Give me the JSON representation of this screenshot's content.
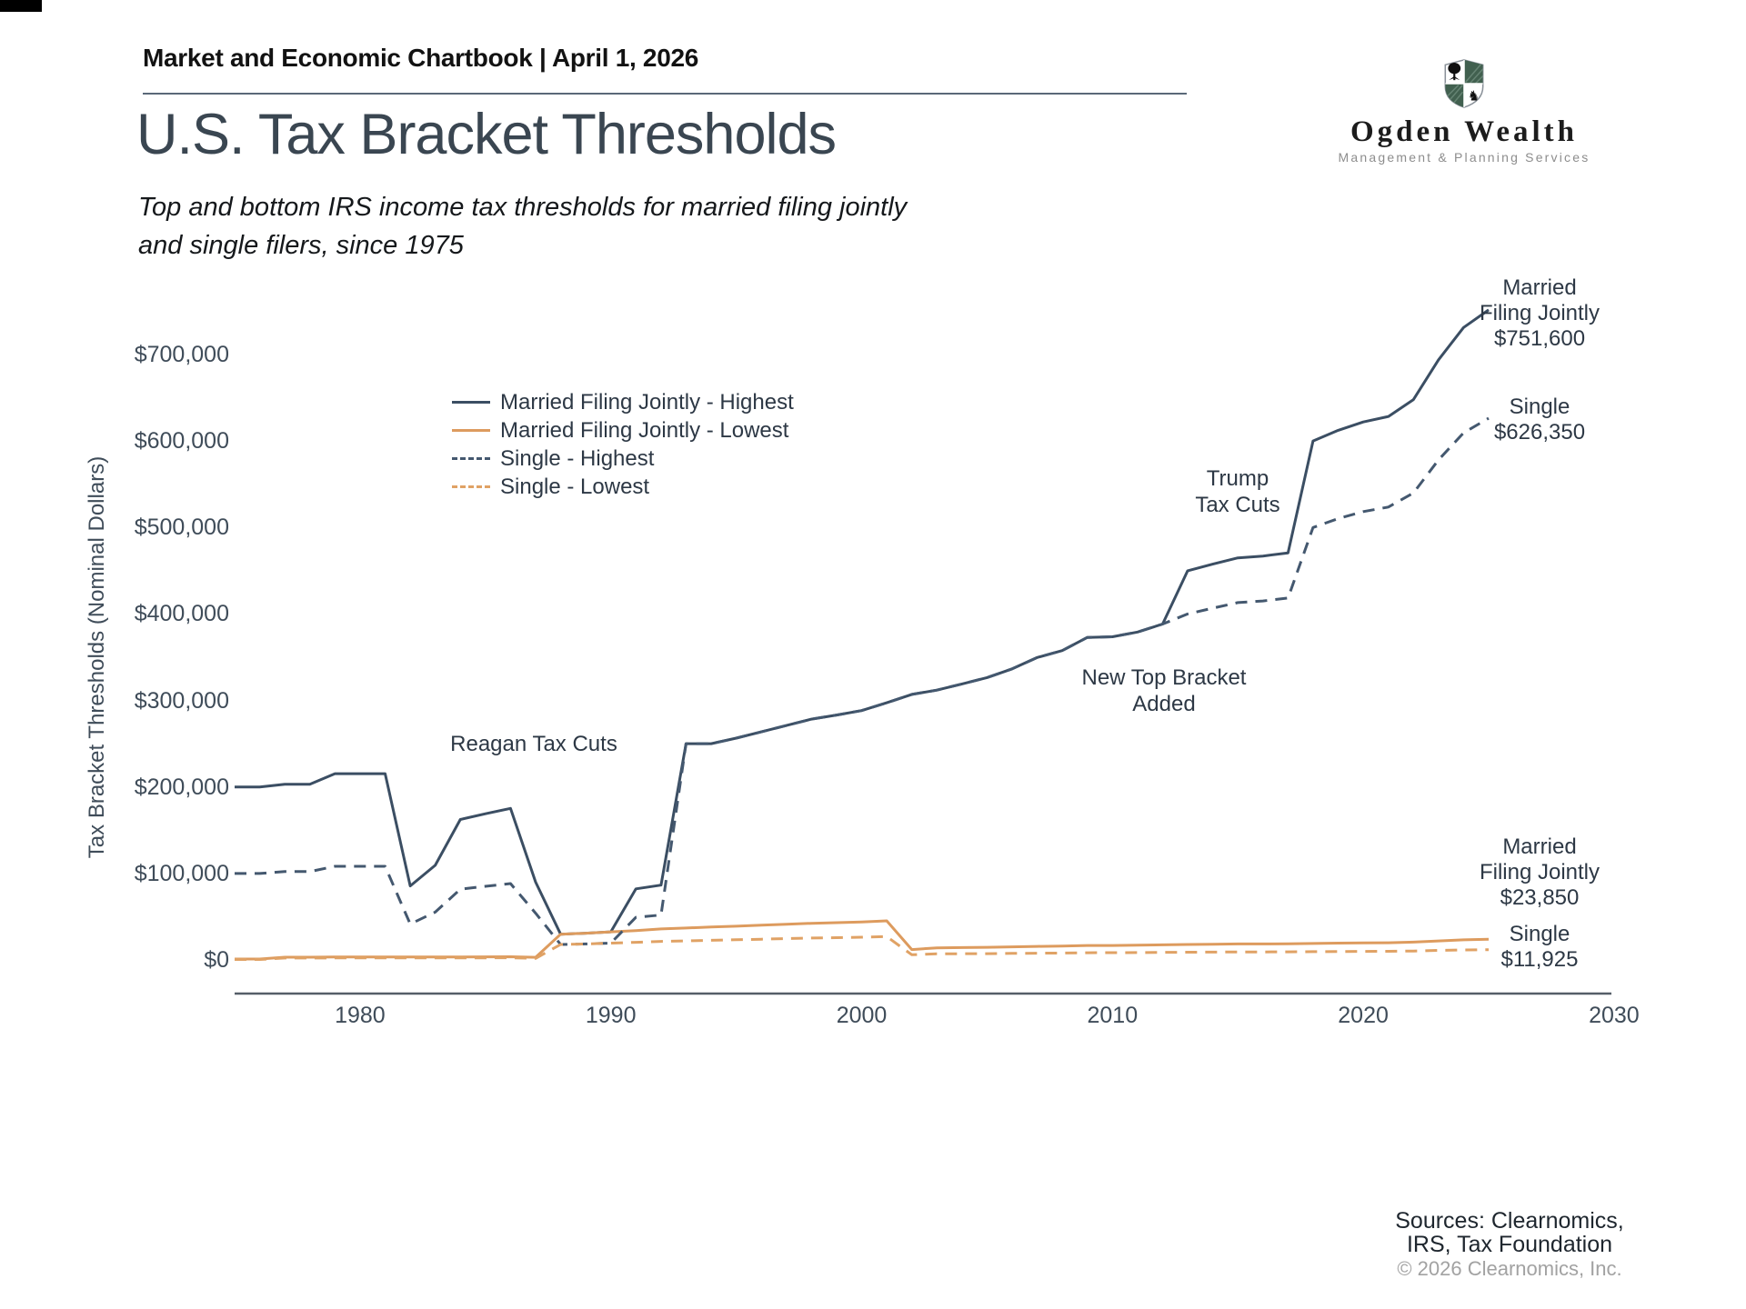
{
  "page": {
    "header": "Market and Economic Chartbook | April 1, 2026",
    "title": "U.S. Tax Bracket Thresholds",
    "subtitle_line1": "Top and bottom IRS income tax thresholds for married filing jointly",
    "subtitle_line2": "and single filers, since 1975"
  },
  "logo": {
    "name": "Ogden Wealth",
    "tagline": "Management & Planning Services",
    "shield_green": "#41604f",
    "shield_hatch": "#6d8a79",
    "shield_outline": "#8a9199"
  },
  "annotations": {
    "reagan": "Reagan Tax Cuts",
    "new_top_line1": "New Top Bracket",
    "new_top_line2": "Added",
    "trump_line1": "Trump",
    "trump_line2": "Tax Cuts"
  },
  "end_labels": {
    "mfj_high": [
      "Married",
      "Filing Jointly",
      "$751,600"
    ],
    "single_high": [
      "Single",
      "$626,350"
    ],
    "mfj_low": [
      "Married",
      "Filing Jointly",
      "$23,850"
    ],
    "single_low": [
      "Single",
      "$11,925"
    ]
  },
  "sources": {
    "line1": "Sources: Clearnomics,",
    "line2": "IRS, Tax Foundation",
    "copyright": "© 2026 Clearnomics, Inc."
  },
  "chart_data": {
    "type": "line",
    "title": "U.S. Tax Bracket Thresholds",
    "xlabel": "",
    "ylabel": "Tax Bracket Thresholds (Nominal Dollars)",
    "xlim": [
      1975,
      2030
    ],
    "ylim": [
      0,
      735000
    ],
    "grid": false,
    "legend_position": "upper-left-inside",
    "x_ticks": [
      1980,
      1990,
      2000,
      2010,
      2020,
      2030
    ],
    "y_ticks": [
      {
        "value": 0,
        "label": "$0"
      },
      {
        "value": 100000,
        "label": "$100,000"
      },
      {
        "value": 200000,
        "label": "$200,000"
      },
      {
        "value": 300000,
        "label": "$300,000"
      },
      {
        "value": 400000,
        "label": "$400,000"
      },
      {
        "value": 500000,
        "label": "$500,000"
      },
      {
        "value": 600000,
        "label": "$600,000"
      },
      {
        "value": 700000,
        "label": "$700,000"
      }
    ],
    "x": [
      1975,
      1976,
      1977,
      1978,
      1979,
      1980,
      1981,
      1982,
      1983,
      1984,
      1985,
      1986,
      1987,
      1988,
      1989,
      1990,
      1991,
      1992,
      1993,
      1994,
      1995,
      1996,
      1997,
      1998,
      1999,
      2000,
      2001,
      2002,
      2003,
      2004,
      2005,
      2006,
      2007,
      2008,
      2009,
      2010,
      2011,
      2012,
      2013,
      2014,
      2015,
      2016,
      2017,
      2018,
      2019,
      2020,
      2021,
      2022,
      2023,
      2024,
      2025
    ],
    "series": [
      {
        "name": "Married Filing Jointly - Highest",
        "color": "#3b4e63",
        "style": "solid",
        "end_value_label": "$751,600",
        "values": [
          200000,
          200000,
          203200,
          203200,
          215400,
          215400,
          215400,
          85600,
          109400,
          162400,
          169020,
          175250,
          90000,
          29750,
          30950,
          32450,
          82150,
          86500,
          250000,
          250000,
          256500,
          263750,
          271050,
          278450,
          283150,
          288350,
          297350,
          307050,
          311950,
          319100,
          326450,
          336550,
          349700,
          357700,
          372950,
          373650,
          379150,
          388350,
          450000,
          457600,
          464850,
          466950,
          470700,
          600000,
          612350,
          622050,
          628300,
          647850,
          693750,
          731200,
          751600
        ]
      },
      {
        "name": "Married Filing Jointly - Lowest",
        "color": "#dd9b5e",
        "style": "solid",
        "end_value_label": "$23,850",
        "values": [
          1000,
          1000,
          3200,
          3200,
          3400,
          3400,
          3400,
          3400,
          3400,
          3400,
          3540,
          3670,
          3000,
          29750,
          30950,
          32450,
          34000,
          35800,
          36900,
          38000,
          39000,
          40100,
          41200,
          42350,
          43050,
          43850,
          45200,
          12000,
          14000,
          14300,
          14600,
          15100,
          15650,
          16050,
          16700,
          16750,
          17000,
          17400,
          17850,
          18150,
          18450,
          18550,
          18650,
          19050,
          19400,
          19750,
          19900,
          20550,
          22000,
          23200,
          23850
        ]
      },
      {
        "name": "Single - Highest",
        "color": "#44586f",
        "style": "dashed",
        "end_value_label": "$626,350",
        "values": [
          100000,
          100000,
          102200,
          102200,
          108300,
          108300,
          108300,
          41500,
          55300,
          81800,
          85130,
          88270,
          54000,
          17850,
          18550,
          19450,
          49300,
          51900,
          250000,
          250000,
          256500,
          263750,
          271050,
          278450,
          283150,
          288350,
          297350,
          307050,
          311950,
          319100,
          326450,
          336550,
          349700,
          357700,
          372950,
          373650,
          379150,
          388350,
          400000,
          406750,
          413200,
          415050,
          418400,
          500000,
          510300,
          518400,
          523600,
          539900,
          578125,
          609350,
          626350
        ]
      },
      {
        "name": "Single - Lowest",
        "color": "#e0a265",
        "style": "dashed",
        "end_value_label": "$11,925",
        "values": [
          500,
          500,
          2200,
          2200,
          2300,
          2300,
          2300,
          2300,
          2300,
          2300,
          2390,
          2480,
          1800,
          17850,
          18550,
          19450,
          20350,
          21450,
          22100,
          22750,
          23350,
          24000,
          24650,
          25350,
          25750,
          26250,
          27050,
          6000,
          7000,
          7150,
          7300,
          7550,
          7825,
          8025,
          8350,
          8375,
          8500,
          8700,
          8925,
          9075,
          9225,
          9275,
          9325,
          9525,
          9700,
          9875,
          9950,
          10275,
          11000,
          11600,
          11925
        ]
      }
    ]
  }
}
